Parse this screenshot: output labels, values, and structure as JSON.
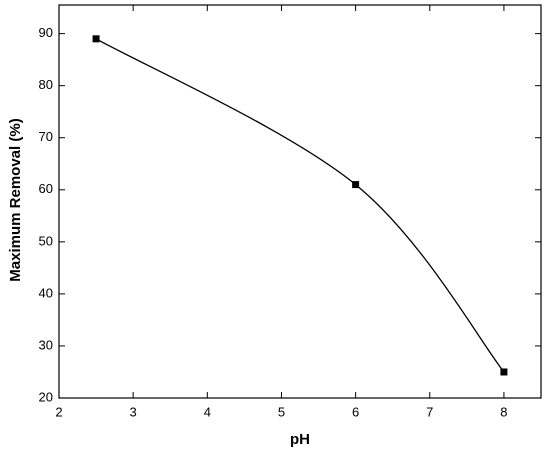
{
  "chart_data": {
    "type": "line",
    "x_label": "pH",
    "y_label": "Maximum Removal (%)",
    "x": [
      2.5,
      6,
      8
    ],
    "values": [
      89,
      61,
      25
    ],
    "color": "#000000",
    "xlim": [
      2,
      8.5
    ],
    "ylim": [
      20,
      95.5
    ],
    "xticks": [
      2,
      3,
      4,
      5,
      6,
      7,
      8
    ],
    "yticks": [
      20,
      30,
      40,
      50,
      60,
      70,
      80,
      90
    ],
    "grid": false,
    "markers": true
  }
}
